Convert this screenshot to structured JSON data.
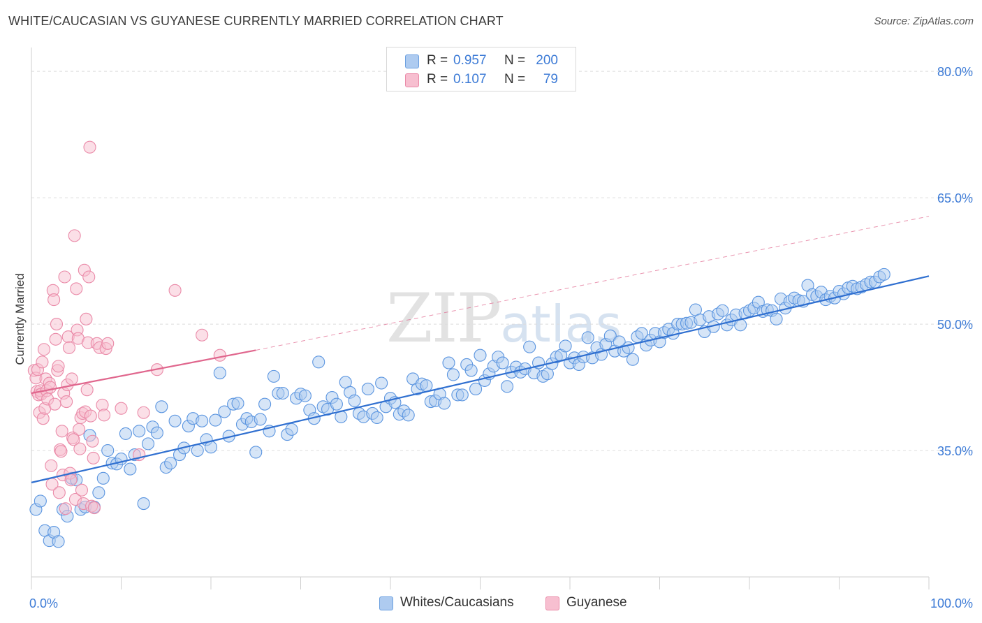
{
  "title": "WHITE/CAUCASIAN VS GUYANESE CURRENTLY MARRIED CORRELATION CHART",
  "source": "Source: ZipAtlas.com",
  "watermark": {
    "zip": "ZIP",
    "atlas": "atlas"
  },
  "legend": {
    "series": [
      {
        "r_label": "R =",
        "r_value": "0.957",
        "n_label": "N =",
        "n_value": "200",
        "color": "#aecbf0",
        "border": "#6a9fe0"
      },
      {
        "r_label": "R =",
        "r_value": "0.107",
        "n_label": "N =",
        "n_value": "79",
        "color": "#f7bfd0",
        "border": "#ea8aa8"
      }
    ]
  },
  "bottom_legend": [
    {
      "label": "Whites/Caucasians",
      "color": "#aecbf0",
      "border": "#6a9fe0"
    },
    {
      "label": "Guyanese",
      "color": "#f7bfd0",
      "border": "#ea8aa8"
    }
  ],
  "chart_data": {
    "type": "scatter",
    "title": "WHITE/CAUCASIAN VS GUYANESE CURRENTLY MARRIED CORRELATION CHART",
    "xlabel": "",
    "ylabel": "Currently Married",
    "xlim": [
      0,
      100
    ],
    "ylim": [
      20,
      82
    ],
    "x_tick_labels": [
      "0.0%",
      "100.0%"
    ],
    "y_ticks": [
      35,
      50,
      65,
      80
    ],
    "y_tick_labels": [
      "35.0%",
      "50.0%",
      "65.0%",
      "80.0%"
    ],
    "grid": true,
    "legend_position": "top-center",
    "series": [
      {
        "name": "Whites/Caucasians",
        "color": "#5b95e0",
        "fill": "#aecbf0",
        "trend": {
          "x0": 0,
          "y0": 31.2,
          "x1": 100,
          "y1": 55.7,
          "style": "solid",
          "color": "#2f6fd0"
        },
        "points": [
          [
            0.5,
            28
          ],
          [
            1,
            29
          ],
          [
            1.5,
            25.5
          ],
          [
            2,
            24.3
          ],
          [
            2.5,
            25.3
          ],
          [
            3,
            24.2
          ],
          [
            3.5,
            28
          ],
          [
            4,
            27.2
          ],
          [
            4.5,
            31.7
          ],
          [
            5,
            31.5
          ],
          [
            5.5,
            28
          ],
          [
            6,
            28.3
          ],
          [
            6.5,
            36.8
          ],
          [
            7,
            28.3
          ],
          [
            7.5,
            30
          ],
          [
            8,
            31.7
          ],
          [
            8.5,
            35
          ],
          [
            9,
            33.5
          ],
          [
            9.5,
            33.4
          ],
          [
            10,
            34
          ],
          [
            10.5,
            37
          ],
          [
            11,
            32.8
          ],
          [
            11.5,
            34.5
          ],
          [
            12,
            37.3
          ],
          [
            12.5,
            28.7
          ],
          [
            13,
            35.8
          ],
          [
            13.5,
            37.8
          ],
          [
            14,
            37.1
          ],
          [
            14.5,
            40.2
          ],
          [
            15,
            33
          ],
          [
            15.5,
            33.5
          ],
          [
            16,
            38.5
          ],
          [
            16.5,
            34.5
          ],
          [
            17,
            35.3
          ],
          [
            17.5,
            37.9
          ],
          [
            18,
            38.8
          ],
          [
            18.5,
            35
          ],
          [
            19,
            38.5
          ],
          [
            19.5,
            36.3
          ],
          [
            20,
            35.4
          ],
          [
            20.5,
            38.6
          ],
          [
            21,
            44.2
          ],
          [
            21.5,
            39.6
          ],
          [
            22,
            36.7
          ],
          [
            22.5,
            40.5
          ],
          [
            23,
            40.6
          ],
          [
            23.5,
            38.1
          ],
          [
            24,
            38.8
          ],
          [
            24.5,
            38.4
          ],
          [
            25,
            34.8
          ],
          [
            25.5,
            38.7
          ],
          [
            26,
            40.5
          ],
          [
            26.5,
            37.3
          ],
          [
            27,
            43.8
          ],
          [
            27.5,
            41.8
          ],
          [
            28,
            41.8
          ],
          [
            28.5,
            36.9
          ],
          [
            29,
            37.5
          ],
          [
            29.5,
            41.2
          ],
          [
            30,
            41.7
          ],
          [
            30.5,
            41.5
          ],
          [
            31,
            39.8
          ],
          [
            31.5,
            38.8
          ],
          [
            32,
            45.5
          ],
          [
            32.5,
            40.2
          ],
          [
            33,
            39.9
          ],
          [
            33.5,
            41.3
          ],
          [
            34,
            40.5
          ],
          [
            34.5,
            39
          ],
          [
            35,
            43.1
          ],
          [
            35.5,
            41.9
          ],
          [
            36,
            40.9
          ],
          [
            36.5,
            39.4
          ],
          [
            37,
            39
          ],
          [
            37.5,
            42.3
          ],
          [
            38,
            39.4
          ],
          [
            38.5,
            38.9
          ],
          [
            39,
            43
          ],
          [
            39.5,
            40.2
          ],
          [
            40,
            41.2
          ],
          [
            40.5,
            40.7
          ],
          [
            41,
            39.3
          ],
          [
            41.5,
            39.7
          ],
          [
            42,
            39.2
          ],
          [
            42.5,
            43.5
          ],
          [
            43,
            42.3
          ],
          [
            43.5,
            42.9
          ],
          [
            44,
            42.7
          ],
          [
            44.5,
            40.8
          ],
          [
            45,
            40.9
          ],
          [
            45.5,
            41.7
          ],
          [
            46,
            40.6
          ],
          [
            46.5,
            45.4
          ],
          [
            47,
            44
          ],
          [
            47.5,
            41.6
          ],
          [
            48,
            41.6
          ],
          [
            48.5,
            45.2
          ],
          [
            49,
            44.5
          ],
          [
            49.5,
            42.3
          ],
          [
            50,
            46.3
          ],
          [
            50.5,
            43.3
          ],
          [
            51,
            44.1
          ],
          [
            51.5,
            45
          ],
          [
            52,
            46.1
          ],
          [
            52.5,
            45.4
          ],
          [
            53,
            42.6
          ],
          [
            53.5,
            44.3
          ],
          [
            54,
            44.9
          ],
          [
            54.5,
            44.3
          ],
          [
            55,
            44.7
          ],
          [
            55.5,
            47.3
          ],
          [
            56,
            44.2
          ],
          [
            56.5,
            45.4
          ],
          [
            57,
            43.8
          ],
          [
            57.5,
            44.1
          ],
          [
            58,
            45.3
          ],
          [
            58.5,
            46.1
          ],
          [
            59,
            46.3
          ],
          [
            59.5,
            47.4
          ],
          [
            60,
            45.4
          ],
          [
            60.5,
            46
          ],
          [
            61,
            45.2
          ],
          [
            61.5,
            46.1
          ],
          [
            62,
            48.4
          ],
          [
            62.5,
            46
          ],
          [
            63,
            47.2
          ],
          [
            63.5,
            46.4
          ],
          [
            64,
            47.6
          ],
          [
            64.5,
            48.6
          ],
          [
            65,
            46.8
          ],
          [
            65.5,
            47.9
          ],
          [
            66,
            46.8
          ],
          [
            66.5,
            47.2
          ],
          [
            67,
            45.8
          ],
          [
            67.5,
            48.5
          ],
          [
            68,
            48.9
          ],
          [
            68.5,
            47.5
          ],
          [
            69,
            48.1
          ],
          [
            69.5,
            48.9
          ],
          [
            70,
            47.9
          ],
          [
            70.5,
            49
          ],
          [
            71,
            49.4
          ],
          [
            71.5,
            48.9
          ],
          [
            72,
            50
          ],
          [
            72.5,
            50
          ],
          [
            73,
            50.1
          ],
          [
            73.5,
            50.2
          ],
          [
            74,
            51.7
          ],
          [
            74.5,
            50.5
          ],
          [
            75,
            49.1
          ],
          [
            75.5,
            50.9
          ],
          [
            76,
            49.7
          ],
          [
            76.5,
            51.2
          ],
          [
            77,
            51.6
          ],
          [
            77.5,
            49.9
          ],
          [
            78,
            50.5
          ],
          [
            78.5,
            51.1
          ],
          [
            79,
            49.9
          ],
          [
            79.5,
            51.3
          ],
          [
            80,
            51.6
          ],
          [
            80.5,
            51.9
          ],
          [
            81,
            52.6
          ],
          [
            81.5,
            51.5
          ],
          [
            82,
            51.7
          ],
          [
            82.5,
            51.6
          ],
          [
            83,
            50.6
          ],
          [
            83.5,
            53
          ],
          [
            84,
            51.9
          ],
          [
            84.5,
            52.7
          ],
          [
            85,
            53.1
          ],
          [
            85.5,
            52.8
          ],
          [
            86,
            52.7
          ],
          [
            86.5,
            54.6
          ],
          [
            87,
            53.5
          ],
          [
            87.5,
            53.3
          ],
          [
            88,
            53.8
          ],
          [
            88.5,
            52.9
          ],
          [
            89,
            53.3
          ],
          [
            89.5,
            53.1
          ],
          [
            90,
            53.9
          ],
          [
            90.5,
            53.6
          ],
          [
            91,
            54.3
          ],
          [
            91.5,
            54.5
          ],
          [
            92,
            54.2
          ],
          [
            92.5,
            54.4
          ],
          [
            93,
            54.7
          ],
          [
            93.5,
            55
          ],
          [
            94,
            55
          ],
          [
            94.5,
            55.6
          ],
          [
            95,
            55.9
          ]
        ]
      },
      {
        "name": "Guyanese",
        "color": "#ea8aa8",
        "fill": "#f7bfd0",
        "trend": {
          "x0": 0,
          "y0": 41.8,
          "x1": 25,
          "y1": 46.9,
          "style": "solid",
          "color": "#e0668d",
          "extension": {
            "x1": 100,
            "y1": 62.8,
            "style": "dashed"
          }
        },
        "points": [
          [
            0.3,
            44.5
          ],
          [
            0.5,
            43.6
          ],
          [
            0.6,
            42
          ],
          [
            0.7,
            44.6
          ],
          [
            0.8,
            41.6
          ],
          [
            0.9,
            39.5
          ],
          [
            1,
            42.1
          ],
          [
            1.1,
            41.7
          ],
          [
            1.2,
            45.5
          ],
          [
            1.3,
            38.8
          ],
          [
            1.4,
            47
          ],
          [
            1.5,
            40
          ],
          [
            1.6,
            43.5
          ],
          [
            1.7,
            42.1
          ],
          [
            1.8,
            41.1
          ],
          [
            2,
            43
          ],
          [
            2.1,
            42.5
          ],
          [
            2.2,
            33.2
          ],
          [
            2.3,
            31
          ],
          [
            2.4,
            54
          ],
          [
            2.5,
            52.9
          ],
          [
            2.6,
            40.5
          ],
          [
            2.7,
            48.2
          ],
          [
            2.8,
            50
          ],
          [
            2.9,
            44.5
          ],
          [
            3,
            45
          ],
          [
            3.1,
            30
          ],
          [
            3.2,
            35.1
          ],
          [
            3.3,
            34.9
          ],
          [
            3.4,
            37.3
          ],
          [
            3.5,
            32.1
          ],
          [
            3.6,
            41.8
          ],
          [
            3.7,
            55.6
          ],
          [
            3.8,
            28.1
          ],
          [
            3.9,
            40.8
          ],
          [
            4,
            42.8
          ],
          [
            4.1,
            48.5
          ],
          [
            4.2,
            47.2
          ],
          [
            4.3,
            32.3
          ],
          [
            4.4,
            31.5
          ],
          [
            4.5,
            43.5
          ],
          [
            4.6,
            36.5
          ],
          [
            4.7,
            36.3
          ],
          [
            4.8,
            60.5
          ],
          [
            4.9,
            29.2
          ],
          [
            5,
            54.2
          ],
          [
            5.1,
            49.3
          ],
          [
            5.2,
            48.3
          ],
          [
            5.3,
            37.5
          ],
          [
            5.4,
            35.2
          ],
          [
            5.5,
            38.9
          ],
          [
            5.6,
            30.3
          ],
          [
            5.7,
            39.4
          ],
          [
            5.8,
            28.7
          ],
          [
            5.9,
            56.4
          ],
          [
            6,
            39.6
          ],
          [
            6.1,
            50.6
          ],
          [
            6.2,
            42.2
          ],
          [
            6.3,
            47.8
          ],
          [
            6.4,
            55.6
          ],
          [
            6.5,
            71
          ],
          [
            6.6,
            39.1
          ],
          [
            6.7,
            28.4
          ],
          [
            6.8,
            36.1
          ],
          [
            6.9,
            34.1
          ],
          [
            7,
            28.2
          ],
          [
            7.3,
            47.7
          ],
          [
            7.6,
            47.2
          ],
          [
            7.9,
            40.4
          ],
          [
            8.1,
            39.2
          ],
          [
            8.3,
            47.1
          ],
          [
            8.5,
            47.7
          ],
          [
            10,
            40
          ],
          [
            12,
            34.5
          ],
          [
            12.5,
            39.5
          ],
          [
            14,
            44.6
          ],
          [
            16,
            54
          ],
          [
            19,
            48.7
          ],
          [
            21,
            46.3
          ]
        ]
      }
    ]
  }
}
